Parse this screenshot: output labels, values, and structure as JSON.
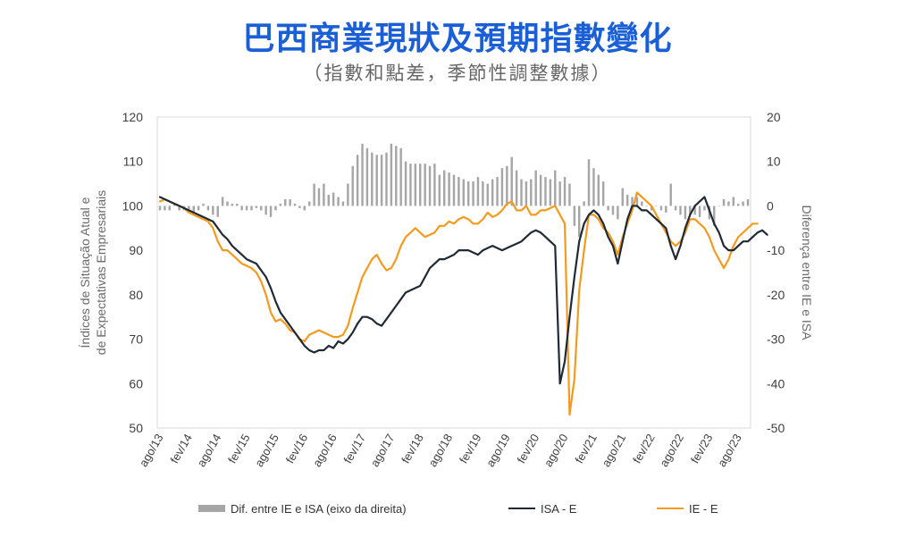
{
  "header": {
    "title": "巴西商業現狀及預期指數變化",
    "subtitle": "（指數和點差，季節性調整數據）"
  },
  "chart_data": {
    "type": "line",
    "x_ticks": [
      "ago/13",
      "fev/14",
      "ago/14",
      "fev/15",
      "ago/15",
      "fev/16",
      "ago/16",
      "fev/17",
      "ago/17",
      "fev/18",
      "ago/18",
      "fev/19",
      "ago/19",
      "fev/20",
      "ago/20",
      "fev/21",
      "ago/21",
      "fev/22",
      "ago/22",
      "fev/23",
      "ago/23"
    ],
    "ylabel_left_line1": "Índices de Situação Atual e",
    "ylabel_left_line2": "de Expectativas Empresariais",
    "ylabel_right": "Diferença entre IE e ISA",
    "ylim_left": [
      50,
      120
    ],
    "yticks_left": [
      "120",
      "110",
      "100",
      "90",
      "80",
      "70",
      "60",
      "50"
    ],
    "ylim_right": [
      -50,
      20
    ],
    "yticks_right": [
      "20",
      "10",
      "0",
      "-10",
      "-20",
      "-30",
      "-40",
      "-50"
    ],
    "legend_position": "bottom",
    "series": [
      {
        "name": "Dif. entre IE e ISA (eixo da direita)",
        "kind": "bar",
        "axis": "right",
        "color": "#a6a6a6",
        "values": [
          -1,
          -1,
          -1,
          0.5,
          -1,
          -1,
          -1,
          -1.5,
          -1,
          0.5,
          -1,
          -2,
          -2.5,
          2,
          1,
          0.5,
          0.5,
          -1,
          -1,
          -1,
          -0.5,
          -1,
          -2,
          -2.5,
          -1,
          0.5,
          1.5,
          1.5,
          0.5,
          -0.5,
          -1,
          1,
          5,
          4,
          5,
          2.5,
          3,
          2,
          1,
          5,
          9,
          11.5,
          14,
          13,
          12,
          11.5,
          11.5,
          12,
          14,
          13.5,
          13,
          10,
          9.5,
          9.5,
          9.5,
          9.5,
          9,
          9.5,
          7,
          8,
          7.5,
          7,
          6.5,
          6,
          5.5,
          5.5,
          6.5,
          5.5,
          5,
          6,
          6.5,
          8.5,
          9,
          11,
          8,
          6,
          5.5,
          6,
          8,
          7,
          6.5,
          6,
          8,
          5.5,
          6.5,
          5,
          -4.5,
          -7,
          1,
          10.5,
          8.5,
          7,
          5.5,
          -1,
          -2,
          -3,
          4,
          2.5,
          2,
          2,
          1,
          0,
          -1,
          0,
          -1,
          -1.5,
          5,
          -1,
          -2,
          -3,
          -2,
          -2,
          -2.5,
          -1,
          -3,
          -4.5,
          0,
          1.5,
          1,
          2,
          0.5,
          1,
          1.5
        ]
      },
      {
        "name": "ISA - E",
        "kind": "line",
        "axis": "left",
        "color": "#1f2a36",
        "values": [
          102,
          101.5,
          101,
          100.5,
          100,
          99.5,
          99,
          98.5,
          98,
          97.5,
          97,
          96.5,
          95,
          93.5,
          92.5,
          91,
          90,
          89,
          88,
          87.5,
          87,
          85.5,
          84,
          81.5,
          78.5,
          76,
          74.5,
          73,
          71.5,
          70,
          68.5,
          67.5,
          67,
          67.5,
          67.5,
          68.5,
          68,
          69.5,
          69,
          70,
          71.5,
          73.5,
          75,
          75,
          74.5,
          73.5,
          73,
          74.5,
          76,
          77.5,
          79,
          80.5,
          81,
          81.5,
          82,
          84,
          86,
          87,
          88,
          88,
          88.5,
          89,
          90,
          90,
          90,
          89.5,
          89,
          90,
          90.5,
          91,
          90.5,
          90,
          90.5,
          91,
          91.5,
          92,
          93,
          94,
          94.5,
          94,
          93,
          92,
          91,
          60,
          65,
          75,
          84,
          92,
          96,
          98,
          99,
          98,
          96,
          93,
          91,
          87,
          92,
          97,
          100,
          100,
          99,
          99,
          98,
          97,
          96,
          95,
          91,
          88,
          91,
          95,
          98,
          100,
          101,
          102,
          99,
          96,
          94,
          91,
          90,
          90,
          91,
          92,
          92,
          93,
          94,
          94.5,
          93.5
        ]
      },
      {
        "name": "IE - E",
        "kind": "line",
        "axis": "left",
        "color": "#f39a1f",
        "values": [
          101,
          101.5,
          101,
          100.5,
          100,
          99.5,
          98.5,
          98,
          97.5,
          97,
          96.5,
          95,
          92,
          90,
          90,
          89,
          88,
          87,
          86.5,
          86,
          85,
          83,
          80,
          76,
          74,
          74.5,
          73.5,
          72,
          71.5,
          70,
          69.5,
          71,
          71.5,
          72,
          71.5,
          71,
          70.5,
          70.5,
          71,
          73,
          77,
          80.5,
          84,
          86,
          88,
          89,
          87,
          85.5,
          86,
          88,
          91,
          93,
          94,
          95,
          94,
          93,
          93.5,
          94,
          95.5,
          95.5,
          96.5,
          96,
          97,
          97.5,
          97,
          96,
          96,
          97,
          98.5,
          97.5,
          98,
          99,
          100.5,
          101,
          99,
          99,
          100,
          98,
          98,
          99,
          99,
          99.5,
          100,
          98,
          96,
          53,
          61,
          81,
          90,
          98,
          98,
          97,
          95,
          94,
          92,
          89,
          93,
          96,
          99,
          103,
          102,
          101,
          100,
          98,
          96,
          94,
          92,
          91,
          92,
          94,
          97,
          97,
          96,
          95,
          93,
          90,
          88,
          86,
          88,
          91,
          93,
          94,
          95,
          96,
          96
        ]
      }
    ]
  }
}
